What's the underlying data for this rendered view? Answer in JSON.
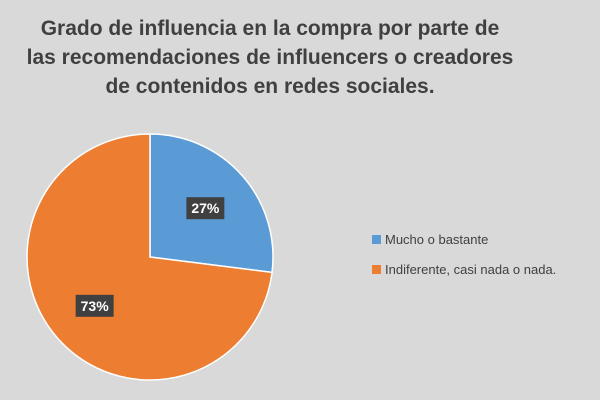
{
  "chart_data": {
    "type": "pie",
    "title": "Grado de influencia en la compra por parte de\nlas recomendaciones de influencers o creadores\nde contenidos en redes sociales.",
    "categories": [
      "Mucho o bastante",
      "Indiferente, casi nada o nada."
    ],
    "values": [
      27,
      73
    ],
    "data_labels": [
      "27%",
      "73%"
    ],
    "colors": [
      "#5b9bd5",
      "#ed7d31"
    ],
    "legend_position": "right"
  }
}
